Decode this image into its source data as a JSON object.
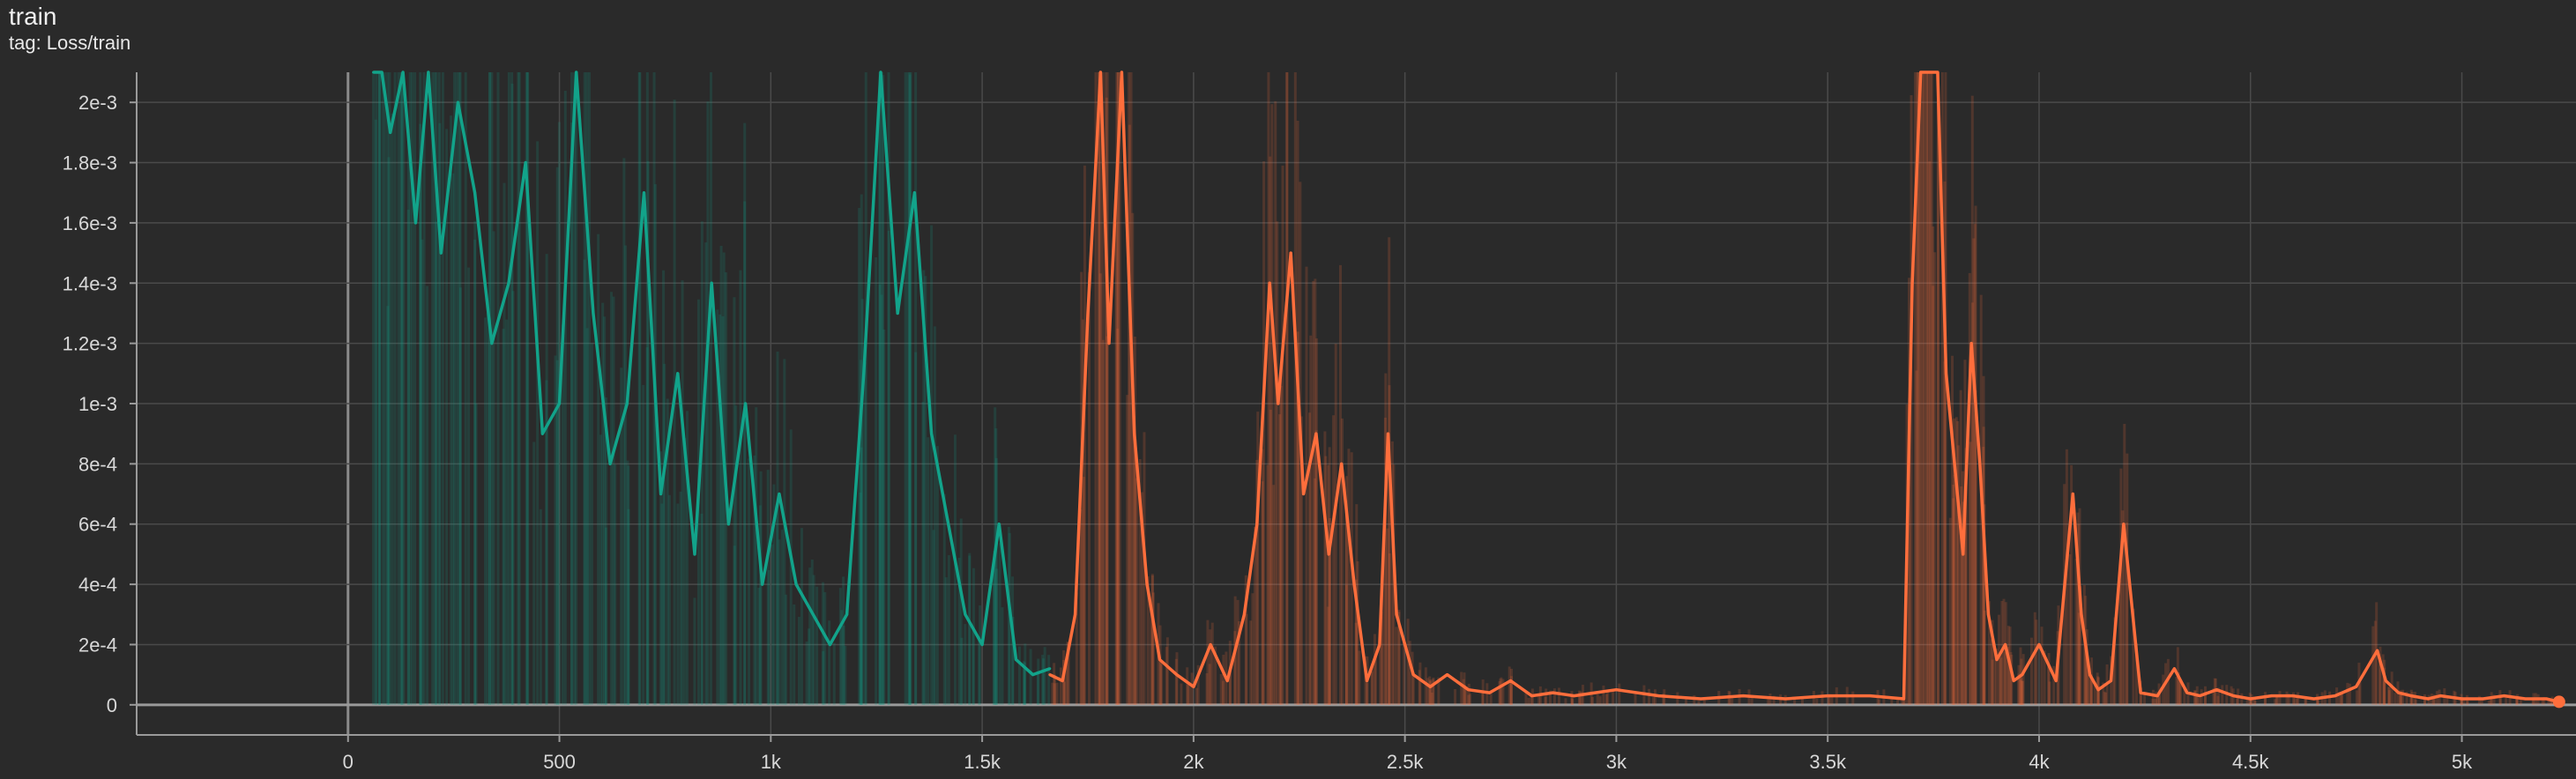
{
  "card": {
    "title": "train",
    "tag": "tag: Loss/train"
  },
  "chart_data": {
    "type": "line",
    "title": "train",
    "xlabel": "",
    "ylabel": "",
    "xlim": [
      -500,
      5270
    ],
    "ylim": [
      -0.0001,
      0.0021
    ],
    "grid": true,
    "legend": "none",
    "x_ticks": [
      {
        "value": 0,
        "label": "0"
      },
      {
        "value": 500,
        "label": "500"
      },
      {
        "value": 1000,
        "label": "1k"
      },
      {
        "value": 1500,
        "label": "1.5k"
      },
      {
        "value": 2000,
        "label": "2k"
      },
      {
        "value": 2500,
        "label": "2.5k"
      },
      {
        "value": 3000,
        "label": "3k"
      },
      {
        "value": 3500,
        "label": "3.5k"
      },
      {
        "value": 4000,
        "label": "4k"
      },
      {
        "value": 4500,
        "label": "4.5k"
      },
      {
        "value": 5000,
        "label": "5k"
      }
    ],
    "y_ticks": [
      {
        "value": 0,
        "label": "0"
      },
      {
        "value": 0.0002,
        "label": "2e-4"
      },
      {
        "value": 0.0004,
        "label": "4e-4"
      },
      {
        "value": 0.0006,
        "label": "6e-4"
      },
      {
        "value": 0.0008,
        "label": "8e-4"
      },
      {
        "value": 0.001,
        "label": "1e-3"
      },
      {
        "value": 0.0012,
        "label": "1.2e-3"
      },
      {
        "value": 0.0014,
        "label": "1.4e-3"
      },
      {
        "value": 0.0016,
        "label": "1.6e-3"
      },
      {
        "value": 0.0018,
        "label": "1.8e-3"
      },
      {
        "value": 0.002,
        "label": "2e-3"
      }
    ],
    "series": [
      {
        "color": "#12a38a",
        "x": [
          60,
          80,
          100,
          130,
          160,
          190,
          220,
          260,
          300,
          340,
          380,
          420,
          460,
          500,
          540,
          580,
          620,
          660,
          700,
          740,
          780,
          820,
          860,
          900,
          940,
          980,
          1020,
          1060,
          1100,
          1140,
          1180,
          1220,
          1260,
          1300,
          1340,
          1380,
          1420,
          1460,
          1500,
          1540,
          1580,
          1620,
          1660
        ],
        "y": [
          0.0022,
          0.0021,
          0.0019,
          0.0021,
          0.0016,
          0.0021,
          0.0015,
          0.002,
          0.0017,
          0.0012,
          0.0014,
          0.0018,
          0.0009,
          0.001,
          0.0021,
          0.0013,
          0.0008,
          0.001,
          0.0017,
          0.0007,
          0.0011,
          0.0005,
          0.0014,
          0.0006,
          0.001,
          0.0004,
          0.0007,
          0.0004,
          0.0003,
          0.0002,
          0.0003,
          0.0011,
          0.0021,
          0.0013,
          0.0017,
          0.0009,
          0.0006,
          0.0003,
          0.0002,
          0.0006,
          0.00015,
          0.0001,
          0.00012
        ]
      },
      {
        "color": "#ff6e3c",
        "x": [
          1660,
          1690,
          1720,
          1750,
          1780,
          1800,
          1830,
          1860,
          1890,
          1920,
          1960,
          2000,
          2040,
          2080,
          2120,
          2150,
          2180,
          2200,
          2230,
          2260,
          2290,
          2320,
          2350,
          2380,
          2410,
          2440,
          2460,
          2480,
          2520,
          2560,
          2600,
          2650,
          2700,
          2750,
          2800,
          2850,
          2900,
          2950,
          3000,
          3100,
          3200,
          3300,
          3400,
          3500,
          3600,
          3680,
          3700,
          3720,
          3740,
          3760,
          3780,
          3800,
          3820,
          3840,
          3860,
          3880,
          3900,
          3920,
          3940,
          3960,
          4000,
          4040,
          4080,
          4100,
          4120,
          4140,
          4170,
          4200,
          4240,
          4280,
          4320,
          4350,
          4380,
          4420,
          4460,
          4500,
          4550,
          4600,
          4650,
          4700,
          4750,
          4800,
          4820,
          4850,
          4880,
          4920,
          4950,
          5000,
          5050,
          5100,
          5150,
          5200,
          5230
        ],
        "y": [
          0.0001,
          8e-05,
          0.0003,
          0.0013,
          0.0022,
          0.0012,
          0.0022,
          0.0009,
          0.0004,
          0.00015,
          0.0001,
          6e-05,
          0.0002,
          8e-05,
          0.0003,
          0.0006,
          0.0014,
          0.001,
          0.0015,
          0.0007,
          0.0009,
          0.0005,
          0.0008,
          0.0004,
          8e-05,
          0.0002,
          0.0009,
          0.0003,
          0.0001,
          6e-05,
          0.0001,
          5e-05,
          4e-05,
          8e-05,
          3e-05,
          4e-05,
          3e-05,
          4e-05,
          5e-05,
          3e-05,
          2e-05,
          3e-05,
          2e-05,
          3e-05,
          3e-05,
          2e-05,
          0.0014,
          0.0022,
          0.0021,
          0.0022,
          0.0011,
          0.0008,
          0.0005,
          0.0012,
          0.0008,
          0.0003,
          0.00015,
          0.0002,
          8e-05,
          0.0001,
          0.0002,
          8e-05,
          0.0007,
          0.0003,
          0.0001,
          5e-05,
          8e-05,
          0.0006,
          4e-05,
          3e-05,
          0.00012,
          4e-05,
          3e-05,
          5e-05,
          3e-05,
          2e-05,
          3e-05,
          3e-05,
          2e-05,
          3e-05,
          6e-05,
          0.00018,
          8e-05,
          4e-05,
          3e-05,
          2e-05,
          3e-05,
          2e-05,
          2e-05,
          3e-05,
          2e-05,
          2e-05,
          1e-05
        ]
      }
    ]
  }
}
